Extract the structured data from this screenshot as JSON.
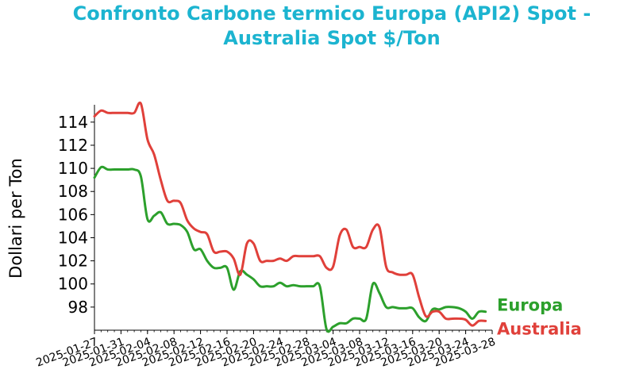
{
  "chart_data": {
    "type": "line",
    "title_line1": "Confronto Carbone termico Europa (API2) Spot -",
    "title_line2": "Australia Spot $/Ton",
    "title_color": "#1cb4d0",
    "xlabel": "",
    "ylabel": "Dollari per Ton",
    "ylim": [
      96.0,
      115.5
    ],
    "yticks": [
      98,
      100,
      102,
      104,
      106,
      108,
      110,
      112,
      114
    ],
    "xlim": [
      "2025-01-27",
      "2025-03-28"
    ],
    "xticks": [
      "2025-01-27",
      "2025-01-31",
      "2025-02-04",
      "2025-02-08",
      "2025-02-12",
      "2025-02-16",
      "2025-02-20",
      "2025-02-24",
      "2025-02-28",
      "2025-03-04",
      "2025-03-08",
      "2025-03-12",
      "2025-03-16",
      "2025-03-20",
      "2025-03-24",
      "2025-03-28"
    ],
    "grid": false,
    "series": [
      {
        "name": "Europa",
        "color": "#2ca02c",
        "points": [
          [
            "2025-01-27",
            109.2
          ],
          [
            "2025-01-28",
            110.1
          ],
          [
            "2025-01-29",
            109.9
          ],
          [
            "2025-01-30",
            109.9
          ],
          [
            "2025-01-31",
            109.9
          ],
          [
            "2025-02-01",
            109.9
          ],
          [
            "2025-02-02",
            109.9
          ],
          [
            "2025-02-03",
            109.3
          ],
          [
            "2025-02-04",
            105.6
          ],
          [
            "2025-02-05",
            105.9
          ],
          [
            "2025-02-06",
            106.2
          ],
          [
            "2025-02-07",
            105.2
          ],
          [
            "2025-02-08",
            105.2
          ],
          [
            "2025-02-09",
            105.1
          ],
          [
            "2025-02-10",
            104.5
          ],
          [
            "2025-02-11",
            103.0
          ],
          [
            "2025-02-12",
            103.0
          ],
          [
            "2025-02-13",
            102.0
          ],
          [
            "2025-02-14",
            101.4
          ],
          [
            "2025-02-15",
            101.4
          ],
          [
            "2025-02-16",
            101.4
          ],
          [
            "2025-02-17",
            99.5
          ],
          [
            "2025-02-18",
            101.1
          ],
          [
            "2025-02-19",
            100.8
          ],
          [
            "2025-02-20",
            100.4
          ],
          [
            "2025-02-21",
            99.8
          ],
          [
            "2025-02-22",
            99.8
          ],
          [
            "2025-02-23",
            99.8
          ],
          [
            "2025-02-24",
            100.1
          ],
          [
            "2025-02-25",
            99.8
          ],
          [
            "2025-02-26",
            99.9
          ],
          [
            "2025-02-27",
            99.8
          ],
          [
            "2025-02-28",
            99.8
          ],
          [
            "2025-03-01",
            99.8
          ],
          [
            "2025-03-02",
            99.8
          ],
          [
            "2025-03-03",
            96.1
          ],
          [
            "2025-03-04",
            96.3
          ],
          [
            "2025-03-05",
            96.6
          ],
          [
            "2025-03-06",
            96.6
          ],
          [
            "2025-03-07",
            97.0
          ],
          [
            "2025-03-08",
            97.0
          ],
          [
            "2025-03-09",
            97.0
          ],
          [
            "2025-03-10",
            100.0
          ],
          [
            "2025-03-11",
            99.2
          ],
          [
            "2025-03-12",
            98.0
          ],
          [
            "2025-03-13",
            98.0
          ],
          [
            "2025-03-14",
            97.9
          ],
          [
            "2025-03-15",
            97.9
          ],
          [
            "2025-03-16",
            97.9
          ],
          [
            "2025-03-17",
            97.1
          ],
          [
            "2025-03-18",
            96.8
          ],
          [
            "2025-03-19",
            97.8
          ],
          [
            "2025-03-20",
            97.8
          ],
          [
            "2025-03-21",
            98.0
          ],
          [
            "2025-03-22",
            98.0
          ],
          [
            "2025-03-23",
            97.9
          ],
          [
            "2025-03-24",
            97.6
          ],
          [
            "2025-03-25",
            97.0
          ],
          [
            "2025-03-26",
            97.6
          ],
          [
            "2025-03-27",
            97.6
          ]
        ]
      },
      {
        "name": "Australia",
        "color": "#e0403a",
        "points": [
          [
            "2025-01-27",
            114.5
          ],
          [
            "2025-01-28",
            115.0
          ],
          [
            "2025-01-29",
            114.8
          ],
          [
            "2025-01-30",
            114.8
          ],
          [
            "2025-01-31",
            114.8
          ],
          [
            "2025-02-01",
            114.8
          ],
          [
            "2025-02-02",
            114.8
          ],
          [
            "2025-02-03",
            115.6
          ],
          [
            "2025-02-04",
            112.5
          ],
          [
            "2025-02-05",
            111.2
          ],
          [
            "2025-02-06",
            109.0
          ],
          [
            "2025-02-07",
            107.2
          ],
          [
            "2025-02-08",
            107.2
          ],
          [
            "2025-02-09",
            107.0
          ],
          [
            "2025-02-10",
            105.5
          ],
          [
            "2025-02-11",
            104.8
          ],
          [
            "2025-02-12",
            104.5
          ],
          [
            "2025-02-13",
            104.3
          ],
          [
            "2025-02-14",
            102.8
          ],
          [
            "2025-02-15",
            102.8
          ],
          [
            "2025-02-16",
            102.8
          ],
          [
            "2025-02-17",
            102.2
          ],
          [
            "2025-02-18",
            100.8
          ],
          [
            "2025-02-19",
            103.5
          ],
          [
            "2025-02-20",
            103.5
          ],
          [
            "2025-02-21",
            102.0
          ],
          [
            "2025-02-22",
            102.0
          ],
          [
            "2025-02-23",
            102.0
          ],
          [
            "2025-02-24",
            102.2
          ],
          [
            "2025-02-25",
            102.0
          ],
          [
            "2025-02-26",
            102.4
          ],
          [
            "2025-02-27",
            102.4
          ],
          [
            "2025-02-28",
            102.4
          ],
          [
            "2025-03-01",
            102.4
          ],
          [
            "2025-03-02",
            102.4
          ],
          [
            "2025-03-03",
            101.4
          ],
          [
            "2025-03-04",
            101.5
          ],
          [
            "2025-03-05",
            104.2
          ],
          [
            "2025-03-06",
            104.7
          ],
          [
            "2025-03-07",
            103.2
          ],
          [
            "2025-03-08",
            103.2
          ],
          [
            "2025-03-09",
            103.2
          ],
          [
            "2025-03-10",
            104.7
          ],
          [
            "2025-03-11",
            104.9
          ],
          [
            "2025-03-12",
            101.5
          ],
          [
            "2025-03-13",
            101.0
          ],
          [
            "2025-03-14",
            100.8
          ],
          [
            "2025-03-15",
            100.8
          ],
          [
            "2025-03-16",
            100.8
          ],
          [
            "2025-03-17",
            98.8
          ],
          [
            "2025-03-18",
            97.2
          ],
          [
            "2025-03-19",
            97.6
          ],
          [
            "2025-03-20",
            97.6
          ],
          [
            "2025-03-21",
            97.0
          ],
          [
            "2025-03-22",
            97.0
          ],
          [
            "2025-03-23",
            97.0
          ],
          [
            "2025-03-24",
            96.9
          ],
          [
            "2025-03-25",
            96.4
          ],
          [
            "2025-03-26",
            96.8
          ],
          [
            "2025-03-27",
            96.8
          ]
        ]
      }
    ],
    "legend": "right-of-line-ends"
  }
}
